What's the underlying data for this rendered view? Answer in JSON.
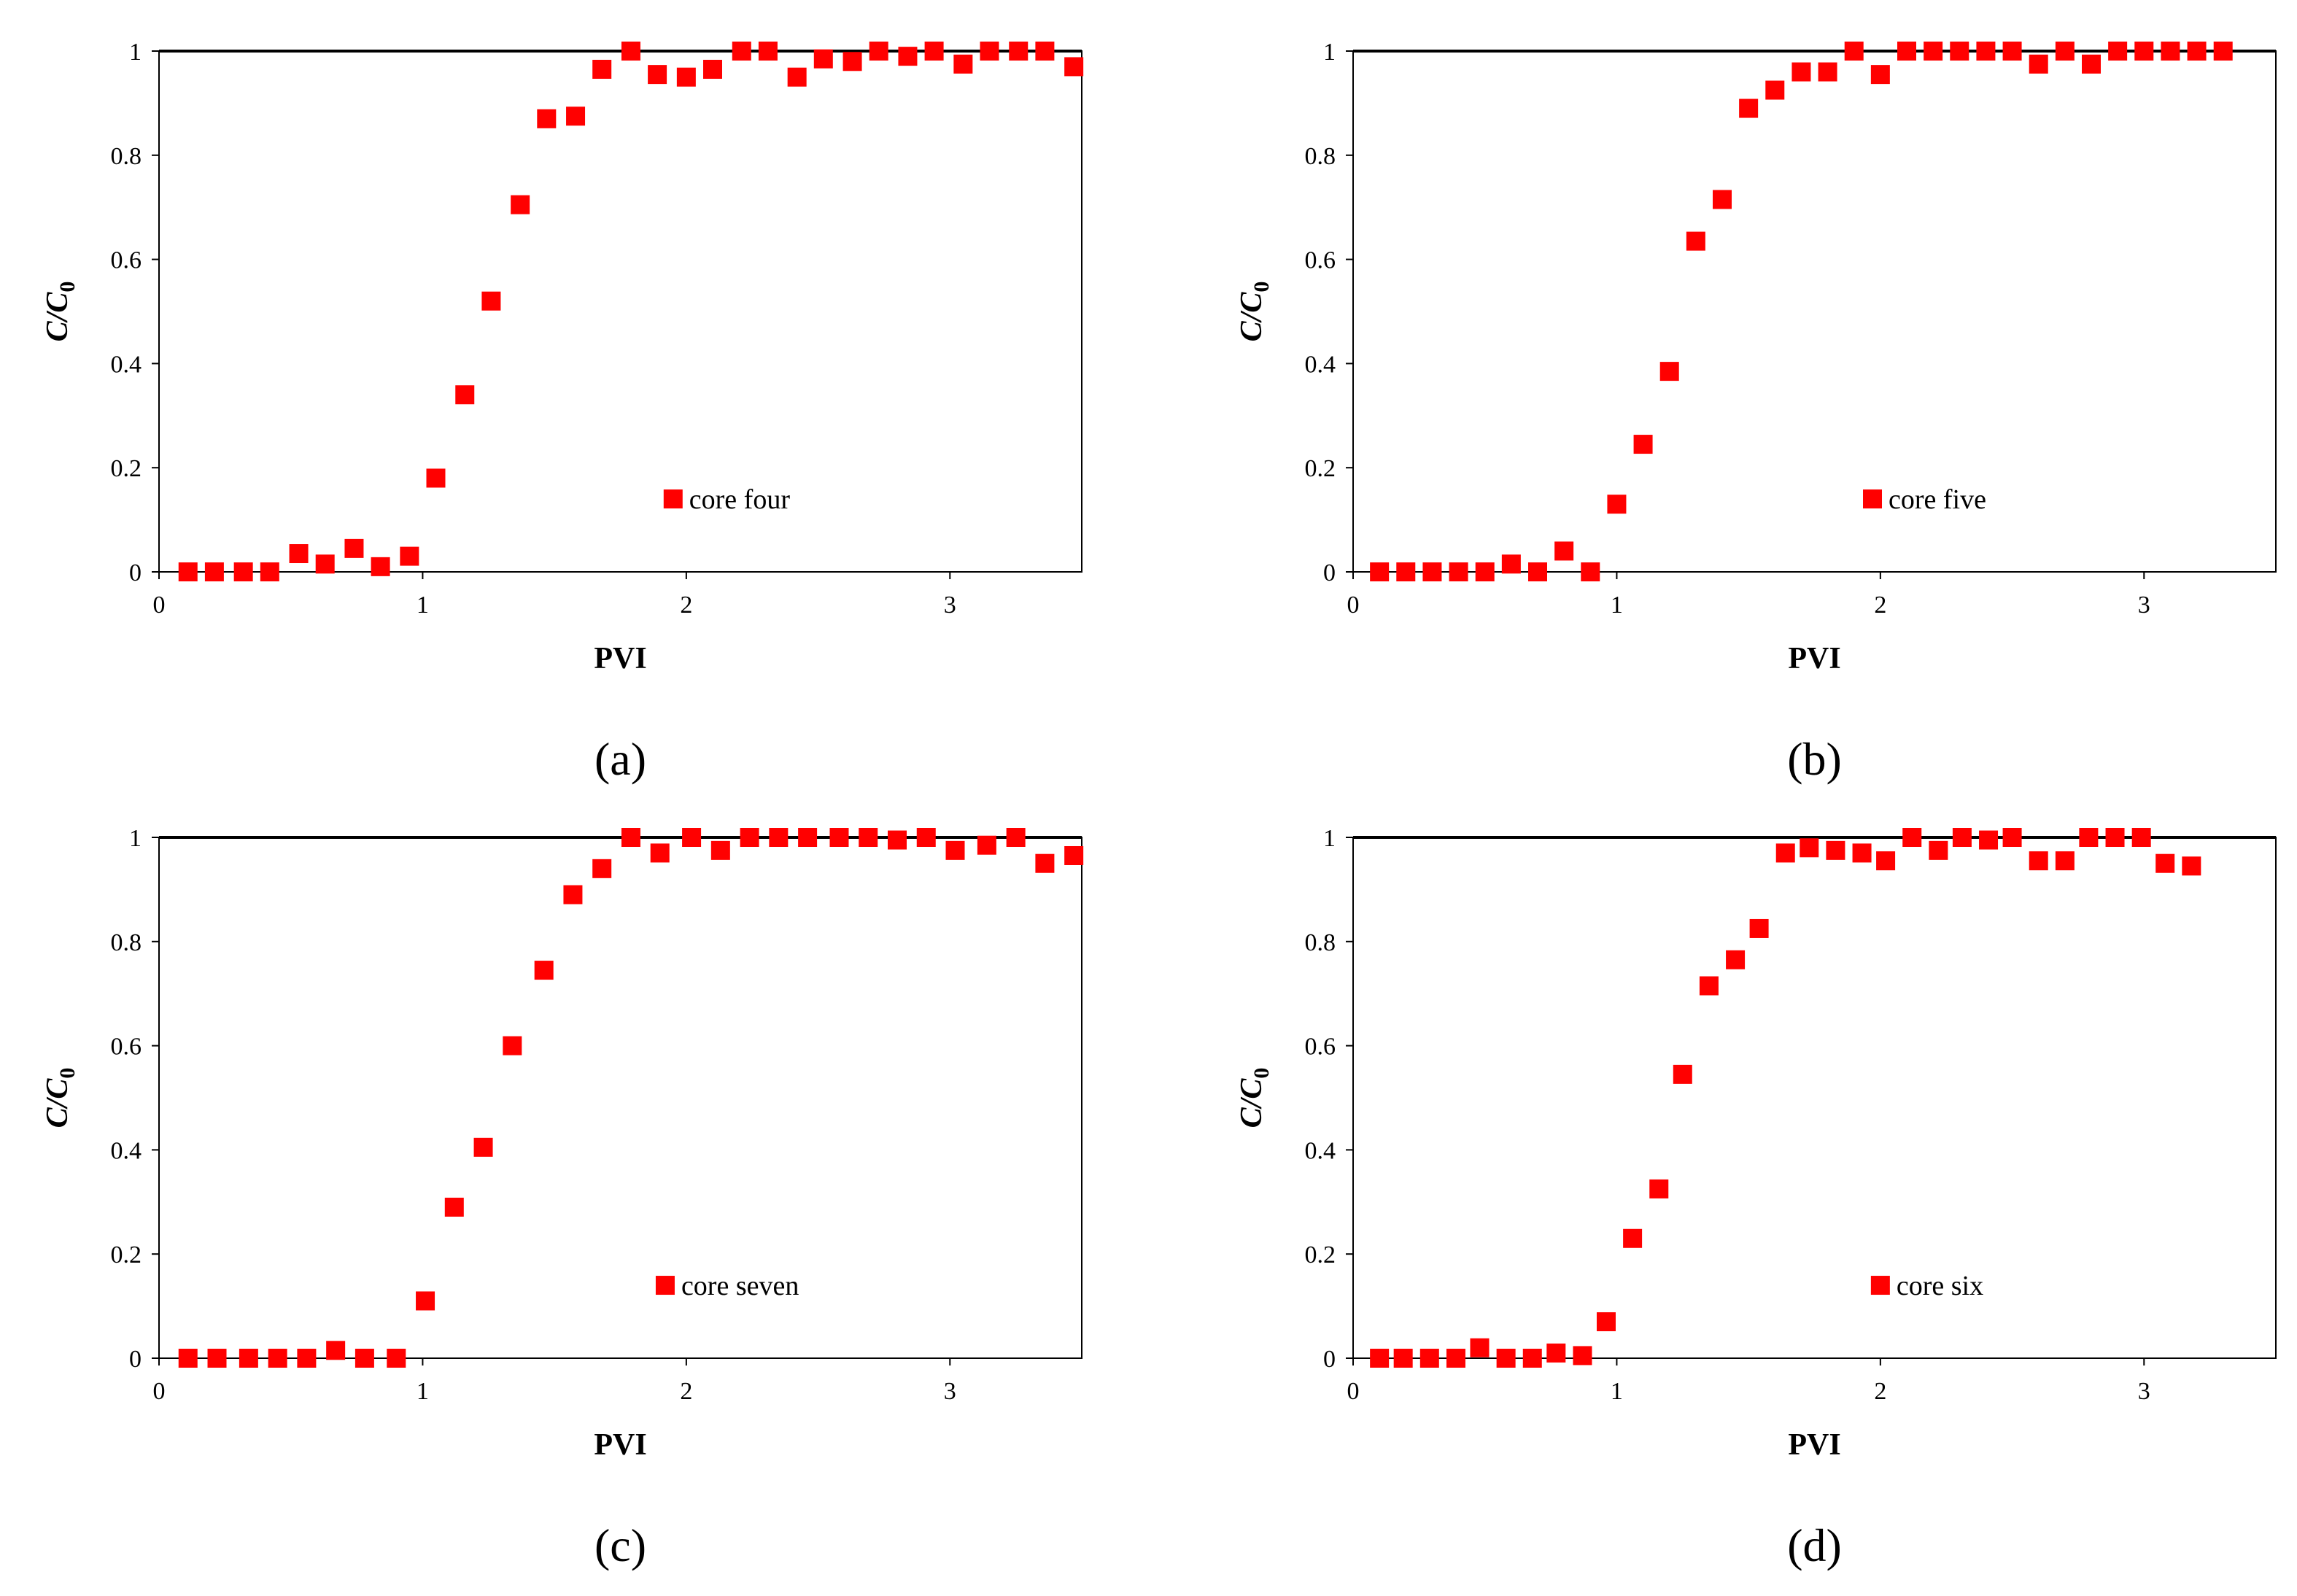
{
  "marker_color": "#ff0000",
  "chart_data": [
    {
      "type": "scatter",
      "panel_label": "(a)",
      "xlabel": "PVI",
      "ylabel": {
        "main": "C/C",
        "sub": "0"
      },
      "xlim": [
        0,
        3.5
      ],
      "ylim": [
        0,
        1
      ],
      "xticks": [
        "0",
        "1",
        "2",
        "3"
      ],
      "yticks": [
        "0",
        "0.2",
        "0.4",
        "0.6",
        "0.8",
        "1"
      ],
      "legend": "core four",
      "legend_pos": [
        1.95,
        0.14
      ],
      "series": [
        {
          "name": "core four",
          "x": [
            0.11,
            0.21,
            0.32,
            0.42,
            0.53,
            0.63,
            0.74,
            0.84,
            0.95,
            1.05,
            1.16,
            1.26,
            1.37,
            1.47,
            1.58,
            1.68,
            1.79,
            1.89,
            2.0,
            2.1,
            2.21,
            2.31,
            2.42,
            2.52,
            2.63,
            2.73,
            2.84,
            2.94,
            3.05,
            3.15,
            3.26,
            3.36,
            3.47
          ],
          "y": [
            0,
            0,
            0,
            0,
            0.035,
            0.015,
            0.045,
            0.01,
            0.03,
            0.18,
            0.34,
            0.52,
            0.705,
            0.87,
            0.875,
            0.965,
            1.0,
            0.955,
            0.95,
            0.965,
            1.0,
            1.0,
            0.95,
            0.985,
            0.98,
            1.0,
            0.99,
            1.0,
            0.975,
            1.0,
            1.0,
            1.0,
            0.97
          ]
        }
      ]
    },
    {
      "type": "scatter",
      "panel_label": "(b)",
      "xlabel": "PVI",
      "ylabel": {
        "main": "C/C",
        "sub": "0"
      },
      "xlim": [
        0,
        3.5
      ],
      "ylim": [
        0,
        1
      ],
      "xticks": [
        "0",
        "1",
        "2",
        "3"
      ],
      "yticks": [
        "0",
        "0.2",
        "0.4",
        "0.6",
        "0.8",
        "1"
      ],
      "legend": "core five",
      "legend_pos": [
        1.97,
        0.14
      ],
      "series": [
        {
          "name": "core five",
          "x": [
            0.1,
            0.2,
            0.3,
            0.4,
            0.5,
            0.6,
            0.7,
            0.8,
            0.9,
            1.0,
            1.1,
            1.2,
            1.3,
            1.4,
            1.5,
            1.6,
            1.7,
            1.8,
            1.9,
            2.0,
            2.1,
            2.2,
            2.3,
            2.4,
            2.5,
            2.6,
            2.7,
            2.8,
            2.9,
            3.0,
            3.1,
            3.2,
            3.3
          ],
          "y": [
            0,
            0,
            0,
            0,
            0,
            0.015,
            0,
            0.04,
            0,
            0.13,
            0.245,
            0.385,
            0.635,
            0.715,
            0.89,
            0.925,
            0.96,
            0.96,
            1.0,
            0.955,
            1.0,
            1.0,
            1.0,
            1.0,
            1.0,
            0.975,
            1.0,
            0.975,
            1.0,
            1.0,
            1.0,
            1.0,
            1.0
          ]
        }
      ]
    },
    {
      "type": "scatter",
      "panel_label": "(c)",
      "xlabel": "PVI",
      "ylabel": {
        "main": "C/C",
        "sub": "0"
      },
      "xlim": [
        0,
        3.5
      ],
      "ylim": [
        0,
        1
      ],
      "xticks": [
        "0",
        "1",
        "2",
        "3"
      ],
      "yticks": [
        "0",
        "0.2",
        "0.4",
        "0.6",
        "0.8",
        "1"
      ],
      "legend": "core seven",
      "legend_pos": [
        1.92,
        0.14
      ],
      "series": [
        {
          "name": "core seven",
          "x": [
            0.11,
            0.22,
            0.34,
            0.45,
            0.56,
            0.67,
            0.78,
            0.9,
            1.01,
            1.12,
            1.23,
            1.34,
            1.46,
            1.57,
            1.68,
            1.79,
            1.9,
            2.02,
            2.13,
            2.24,
            2.35,
            2.46,
            2.58,
            2.69,
            2.8,
            2.91,
            3.02,
            3.14,
            3.25,
            3.36,
            3.47
          ],
          "y": [
            0,
            0,
            0,
            0,
            0,
            0.015,
            0,
            0,
            0.11,
            0.29,
            0.405,
            0.6,
            0.745,
            0.89,
            0.94,
            1.0,
            0.97,
            1.0,
            0.975,
            1.0,
            1.0,
            1.0,
            1.0,
            1.0,
            0.995,
            1.0,
            0.975,
            0.985,
            1.0,
            0.95,
            0.965
          ]
        }
      ]
    },
    {
      "type": "scatter",
      "panel_label": "(d)",
      "xlabel": "PVI",
      "ylabel": {
        "main": "C/C",
        "sub": "0"
      },
      "xlim": [
        0,
        3.5
      ],
      "ylim": [
        0,
        1
      ],
      "xticks": [
        "0",
        "1",
        "2",
        "3"
      ],
      "yticks": [
        "0",
        "0.2",
        "0.4",
        "0.6",
        "0.8",
        "1"
      ],
      "legend": "core six",
      "legend_pos": [
        2.0,
        0.14
      ],
      "series": [
        {
          "name": "core six",
          "x": [
            0.1,
            0.19,
            0.29,
            0.39,
            0.48,
            0.58,
            0.68,
            0.77,
            0.87,
            0.96,
            1.06,
            1.16,
            1.25,
            1.35,
            1.45,
            1.54,
            1.64,
            1.73,
            1.83,
            1.93,
            2.02,
            2.12,
            2.22,
            2.31,
            2.41,
            2.5,
            2.6,
            2.7,
            2.79,
            2.89,
            2.99,
            3.08,
            3.18
          ],
          "y": [
            0,
            0,
            0,
            0,
            0.02,
            0,
            0,
            0.01,
            0.005,
            0.07,
            0.23,
            0.325,
            0.545,
            0.715,
            0.765,
            0.825,
            0.97,
            0.98,
            0.975,
            0.97,
            0.955,
            1.0,
            0.975,
            1.0,
            0.995,
            1.0,
            0.955,
            0.955,
            1.0,
            1.0,
            1.0,
            0.95,
            0.945
          ]
        }
      ]
    }
  ]
}
